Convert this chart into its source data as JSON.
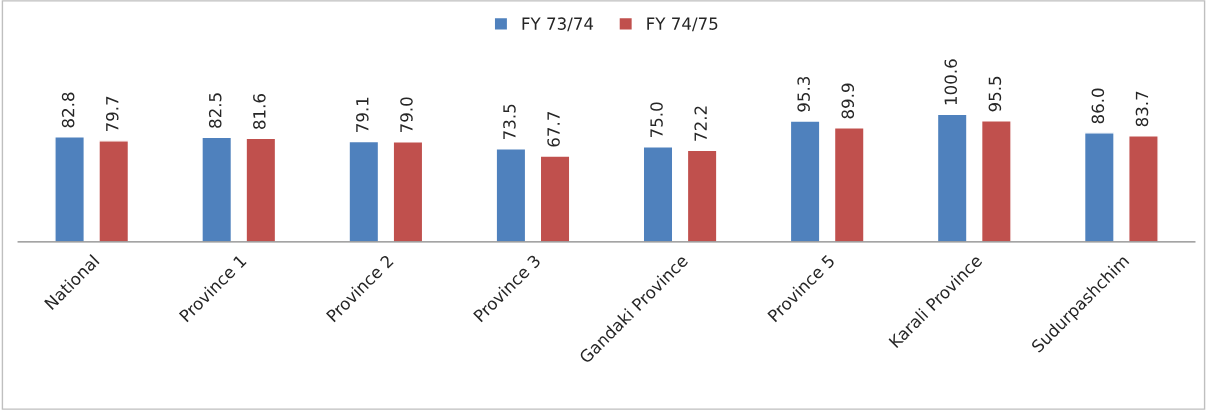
{
  "chart_data": {
    "type": "bar",
    "categories": [
      "National",
      "Province 1",
      "Province 2",
      "Province 3",
      "Gandaki Province",
      "Province 5",
      "Karali Province",
      "Sudurpashchim"
    ],
    "series": [
      {
        "name": "FY 73/74",
        "color": "#4f81bd",
        "values": [
          82.8,
          82.5,
          79.1,
          73.5,
          75.0,
          95.3,
          100.6,
          86.0
        ],
        "value_labels": [
          "82.8",
          "82.5",
          "79.1",
          "73.5",
          "75.0",
          "95.3",
          "100.6",
          "86.0"
        ]
      },
      {
        "name": "FY 74/75",
        "color": "#c0504d",
        "values": [
          79.7,
          81.6,
          79.0,
          67.7,
          72.2,
          89.9,
          95.5,
          83.7
        ],
        "value_labels": [
          "79.7",
          "81.6",
          "79.0",
          "67.7",
          "72.2",
          "89.9",
          "95.5",
          "83.7"
        ]
      }
    ],
    "legend": "top",
    "grid": false
  }
}
